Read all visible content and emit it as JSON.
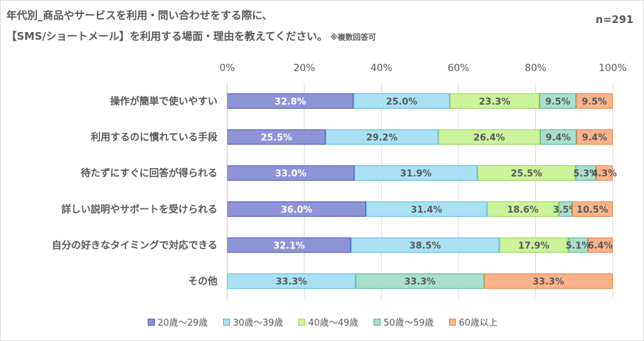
{
  "title_line1": "年代別_商品やサービスを利用・問い合わせをする際に、",
  "title_line2": "【SMS/ショートメール】を利用する場面・理由を教えてください。",
  "title_note": "※複数回答可",
  "sample_size": "n=291",
  "chart_data": {
    "type": "bar",
    "orientation": "horizontal",
    "stacked": "percent",
    "categories": [
      "操作が簡単で使いやすい",
      "利用するのに慣れている手段",
      "待たずにすぐに回答が得られる",
      "詳しい説明やサポートを受けられる",
      "自分の好きなタイミングで対応できる",
      "その他"
    ],
    "series": [
      {
        "name": "20歳～29歳",
        "color": "#8f94d9",
        "border": "#4a4fb0",
        "label_color": "#ffffff",
        "values": [
          32.8,
          25.5,
          33.0,
          36.0,
          32.1,
          0
        ],
        "labels": [
          "32.8%",
          "25.5%",
          "33.0%",
          "36.0%",
          "32.1%",
          ""
        ]
      },
      {
        "name": "30歳～39歳",
        "color": "#a9e1f4",
        "border": "#4fb9e0",
        "label_color": "#595959",
        "values": [
          25.0,
          29.2,
          31.9,
          31.4,
          38.5,
          33.3
        ],
        "labels": [
          "25.0%",
          "29.2%",
          "31.9%",
          "31.4%",
          "38.5%",
          "33.3%"
        ]
      },
      {
        "name": "40歳～49歳",
        "color": "#ccf29a",
        "border": "#8cd44a",
        "label_color": "#595959",
        "values": [
          23.3,
          26.4,
          25.5,
          18.6,
          17.9,
          0
        ],
        "labels": [
          "23.3%",
          "26.4%",
          "25.5%",
          "18.6%",
          "17.9%",
          ""
        ]
      },
      {
        "name": "50歳～59歳",
        "color": "#a8e0cc",
        "border": "#4fb493",
        "label_color": "#595959",
        "values": [
          9.5,
          9.4,
          5.3,
          3.5,
          5.1,
          33.3
        ],
        "labels": [
          "9.5%",
          "9.4%",
          "5.3%",
          "3.5%",
          "5.1%",
          "33.3%"
        ]
      },
      {
        "name": "60歳以上",
        "color": "#fbb38a",
        "border": "#f07b3a",
        "label_color": "#595959",
        "values": [
          9.5,
          9.4,
          4.3,
          10.5,
          6.4,
          33.3
        ],
        "labels": [
          "9.5%",
          "9.4%",
          "4.3%",
          "10.5%",
          "6.4%",
          "33.3%"
        ]
      }
    ],
    "x_ticks": [
      "0%",
      "20%",
      "40%",
      "60%",
      "80%",
      "100%"
    ],
    "xlim": [
      0,
      100
    ],
    "grid": true,
    "legend_position": "bottom"
  }
}
